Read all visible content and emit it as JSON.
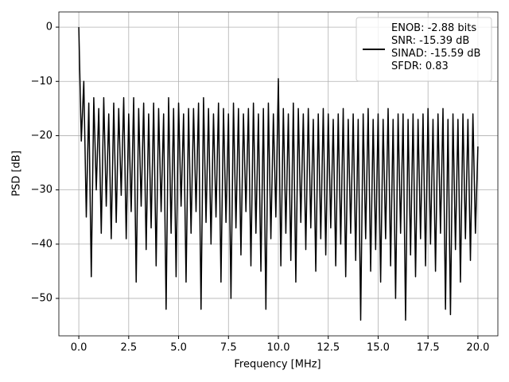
{
  "chart_data": {
    "type": "line",
    "xlabel": "Frequency [MHz]",
    "ylabel": "PSD [dB]",
    "x": [
      0,
      0.125,
      0.25,
      0.375,
      0.5,
      0.625,
      0.75,
      0.875,
      1,
      1.125,
      1.25,
      1.375,
      1.5,
      1.625,
      1.75,
      1.875,
      2,
      2.125,
      2.25,
      2.375,
      2.5,
      2.625,
      2.75,
      2.875,
      3,
      3.125,
      3.25,
      3.375,
      3.5,
      3.625,
      3.75,
      3.875,
      4,
      4.125,
      4.25,
      4.375,
      4.5,
      4.625,
      4.75,
      4.875,
      5,
      5.125,
      5.25,
      5.375,
      5.5,
      5.625,
      5.75,
      5.875,
      6,
      6.125,
      6.25,
      6.375,
      6.5,
      6.625,
      6.75,
      6.875,
      7,
      7.125,
      7.25,
      7.375,
      7.5,
      7.625,
      7.75,
      7.875,
      8,
      8.125,
      8.25,
      8.375,
      8.5,
      8.625,
      8.75,
      8.875,
      9,
      9.125,
      9.25,
      9.375,
      9.5,
      9.625,
      9.75,
      9.875,
      10,
      10.125,
      10.25,
      10.375,
      10.5,
      10.625,
      10.75,
      10.875,
      11,
      11.125,
      11.25,
      11.375,
      11.5,
      11.625,
      11.75,
      11.875,
      12,
      12.125,
      12.25,
      12.375,
      12.5,
      12.625,
      12.75,
      12.875,
      13,
      13.125,
      13.25,
      13.375,
      13.5,
      13.625,
      13.75,
      13.875,
      14,
      14.125,
      14.25,
      14.375,
      14.5,
      14.625,
      14.75,
      14.875,
      15,
      15.125,
      15.25,
      15.375,
      15.5,
      15.625,
      15.75,
      15.875,
      16,
      16.125,
      16.25,
      16.375,
      16.5,
      16.625,
      16.75,
      16.875,
      17,
      17.125,
      17.25,
      17.375,
      17.5,
      17.625,
      17.75,
      17.875,
      18,
      18.125,
      18.25,
      18.375,
      18.5,
      18.625,
      18.75,
      18.875,
      19,
      19.125,
      19.25,
      19.375,
      19.5,
      19.625,
      19.75,
      19.875,
      20
    ],
    "series": [
      {
        "name": "ENOB: -2.88 bits\nSNR: -15.39 dB\nSINAD: -15.59 dB\nSFDR: 0.83",
        "color": "#000000",
        "values": [
          0,
          -21,
          -10,
          -35,
          -14,
          -46,
          -13,
          -30,
          -15,
          -38,
          -13,
          -33,
          -16,
          -39,
          -14,
          -36,
          -15,
          -31,
          -13,
          -39,
          -16,
          -34,
          -13,
          -47,
          -15,
          -33,
          -14,
          -41,
          -16,
          -37,
          -14,
          -44,
          -15,
          -34,
          -16,
          -52,
          -13,
          -38,
          -15,
          -46,
          -14,
          -33,
          -16,
          -47,
          -15,
          -38,
          -15,
          -34,
          -14,
          -52,
          -13,
          -36,
          -15,
          -40,
          -16,
          -35,
          -14,
          -47,
          -15,
          -36,
          -16,
          -50,
          -14,
          -37,
          -15,
          -42,
          -16,
          -34,
          -15,
          -44,
          -14,
          -38,
          -16,
          -45,
          -15,
          -52,
          -14,
          -39,
          -16,
          -35,
          -9.5,
          -44,
          -15,
          -38,
          -16,
          -43,
          -14,
          -47,
          -15,
          -36,
          -16,
          -41,
          -15,
          -37,
          -17,
          -45,
          -16,
          -39,
          -15,
          -42,
          -16,
          -37,
          -17,
          -44,
          -16,
          -40,
          -15,
          -46,
          -17,
          -38,
          -16,
          -43,
          -17,
          -54,
          -16,
          -39,
          -15,
          -45,
          -17,
          -41,
          -16,
          -47,
          -17,
          -39,
          -15,
          -44,
          -17,
          -50,
          -16,
          -38,
          -16,
          -54,
          -17,
          -42,
          -16,
          -46,
          -17,
          -39,
          -16,
          -44,
          -15,
          -40,
          -17,
          -45,
          -16,
          -38,
          -15,
          -52,
          -17,
          -53,
          -16,
          -41,
          -17,
          -47,
          -16,
          -39,
          -17,
          -43,
          -16,
          -38,
          -22
        ]
      }
    ],
    "xlim": [
      -1,
      21
    ],
    "ylim": [
      -56.9,
      2.8
    ],
    "xticks": [
      {
        "value": 0,
        "label": "0.0"
      },
      {
        "value": 2.5,
        "label": "2.5"
      },
      {
        "value": 5,
        "label": "5.0"
      },
      {
        "value": 7.5,
        "label": "7.5"
      },
      {
        "value": 10,
        "label": "10.0"
      },
      {
        "value": 12.5,
        "label": "12.5"
      },
      {
        "value": 15,
        "label": "15.0"
      },
      {
        "value": 17.5,
        "label": "17.5"
      },
      {
        "value": 20,
        "label": "20.0"
      }
    ],
    "yticks": [
      0,
      {
        "value": -10,
        "label": "−10"
      },
      {
        "value": -20,
        "label": "−20"
      },
      {
        "value": -30,
        "label": "−30"
      },
      {
        "value": -40,
        "label": "−40"
      },
      {
        "value": -50,
        "label": "−50"
      }
    ],
    "grid": true,
    "legend": "upper right"
  }
}
